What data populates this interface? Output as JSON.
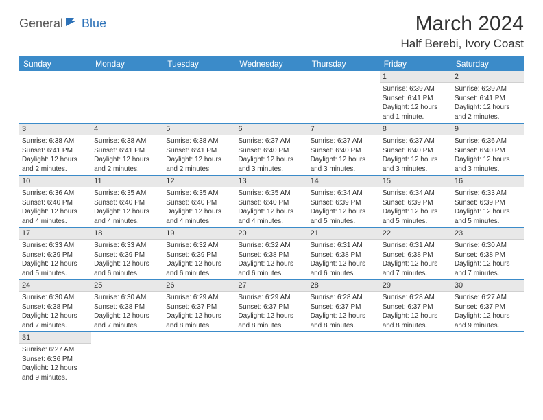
{
  "logo": {
    "general": "General",
    "blue": "Blue"
  },
  "header": {
    "title": "March 2024",
    "location": "Half Berebi, Ivory Coast"
  },
  "colors": {
    "header_bg": "#3b8bc9",
    "header_text": "#ffffff",
    "daynum_bg": "#e8e8e8",
    "border": "#3b8bc9",
    "logo_gray": "#5a5a5a",
    "logo_blue": "#2d72b8"
  },
  "weekdays": [
    "Sunday",
    "Monday",
    "Tuesday",
    "Wednesday",
    "Thursday",
    "Friday",
    "Saturday"
  ],
  "weeks": [
    [
      null,
      null,
      null,
      null,
      null,
      {
        "day": "1",
        "sunrise": "Sunrise: 6:39 AM",
        "sunset": "Sunset: 6:41 PM",
        "daylight": "Daylight: 12 hours and 1 minute."
      },
      {
        "day": "2",
        "sunrise": "Sunrise: 6:39 AM",
        "sunset": "Sunset: 6:41 PM",
        "daylight": "Daylight: 12 hours and 2 minutes."
      }
    ],
    [
      {
        "day": "3",
        "sunrise": "Sunrise: 6:38 AM",
        "sunset": "Sunset: 6:41 PM",
        "daylight": "Daylight: 12 hours and 2 minutes."
      },
      {
        "day": "4",
        "sunrise": "Sunrise: 6:38 AM",
        "sunset": "Sunset: 6:41 PM",
        "daylight": "Daylight: 12 hours and 2 minutes."
      },
      {
        "day": "5",
        "sunrise": "Sunrise: 6:38 AM",
        "sunset": "Sunset: 6:41 PM",
        "daylight": "Daylight: 12 hours and 2 minutes."
      },
      {
        "day": "6",
        "sunrise": "Sunrise: 6:37 AM",
        "sunset": "Sunset: 6:40 PM",
        "daylight": "Daylight: 12 hours and 3 minutes."
      },
      {
        "day": "7",
        "sunrise": "Sunrise: 6:37 AM",
        "sunset": "Sunset: 6:40 PM",
        "daylight": "Daylight: 12 hours and 3 minutes."
      },
      {
        "day": "8",
        "sunrise": "Sunrise: 6:37 AM",
        "sunset": "Sunset: 6:40 PM",
        "daylight": "Daylight: 12 hours and 3 minutes."
      },
      {
        "day": "9",
        "sunrise": "Sunrise: 6:36 AM",
        "sunset": "Sunset: 6:40 PM",
        "daylight": "Daylight: 12 hours and 3 minutes."
      }
    ],
    [
      {
        "day": "10",
        "sunrise": "Sunrise: 6:36 AM",
        "sunset": "Sunset: 6:40 PM",
        "daylight": "Daylight: 12 hours and 4 minutes."
      },
      {
        "day": "11",
        "sunrise": "Sunrise: 6:35 AM",
        "sunset": "Sunset: 6:40 PM",
        "daylight": "Daylight: 12 hours and 4 minutes."
      },
      {
        "day": "12",
        "sunrise": "Sunrise: 6:35 AM",
        "sunset": "Sunset: 6:40 PM",
        "daylight": "Daylight: 12 hours and 4 minutes."
      },
      {
        "day": "13",
        "sunrise": "Sunrise: 6:35 AM",
        "sunset": "Sunset: 6:40 PM",
        "daylight": "Daylight: 12 hours and 4 minutes."
      },
      {
        "day": "14",
        "sunrise": "Sunrise: 6:34 AM",
        "sunset": "Sunset: 6:39 PM",
        "daylight": "Daylight: 12 hours and 5 minutes."
      },
      {
        "day": "15",
        "sunrise": "Sunrise: 6:34 AM",
        "sunset": "Sunset: 6:39 PM",
        "daylight": "Daylight: 12 hours and 5 minutes."
      },
      {
        "day": "16",
        "sunrise": "Sunrise: 6:33 AM",
        "sunset": "Sunset: 6:39 PM",
        "daylight": "Daylight: 12 hours and 5 minutes."
      }
    ],
    [
      {
        "day": "17",
        "sunrise": "Sunrise: 6:33 AM",
        "sunset": "Sunset: 6:39 PM",
        "daylight": "Daylight: 12 hours and 5 minutes."
      },
      {
        "day": "18",
        "sunrise": "Sunrise: 6:33 AM",
        "sunset": "Sunset: 6:39 PM",
        "daylight": "Daylight: 12 hours and 6 minutes."
      },
      {
        "day": "19",
        "sunrise": "Sunrise: 6:32 AM",
        "sunset": "Sunset: 6:39 PM",
        "daylight": "Daylight: 12 hours and 6 minutes."
      },
      {
        "day": "20",
        "sunrise": "Sunrise: 6:32 AM",
        "sunset": "Sunset: 6:38 PM",
        "daylight": "Daylight: 12 hours and 6 minutes."
      },
      {
        "day": "21",
        "sunrise": "Sunrise: 6:31 AM",
        "sunset": "Sunset: 6:38 PM",
        "daylight": "Daylight: 12 hours and 6 minutes."
      },
      {
        "day": "22",
        "sunrise": "Sunrise: 6:31 AM",
        "sunset": "Sunset: 6:38 PM",
        "daylight": "Daylight: 12 hours and 7 minutes."
      },
      {
        "day": "23",
        "sunrise": "Sunrise: 6:30 AM",
        "sunset": "Sunset: 6:38 PM",
        "daylight": "Daylight: 12 hours and 7 minutes."
      }
    ],
    [
      {
        "day": "24",
        "sunrise": "Sunrise: 6:30 AM",
        "sunset": "Sunset: 6:38 PM",
        "daylight": "Daylight: 12 hours and 7 minutes."
      },
      {
        "day": "25",
        "sunrise": "Sunrise: 6:30 AM",
        "sunset": "Sunset: 6:38 PM",
        "daylight": "Daylight: 12 hours and 7 minutes."
      },
      {
        "day": "26",
        "sunrise": "Sunrise: 6:29 AM",
        "sunset": "Sunset: 6:37 PM",
        "daylight": "Daylight: 12 hours and 8 minutes."
      },
      {
        "day": "27",
        "sunrise": "Sunrise: 6:29 AM",
        "sunset": "Sunset: 6:37 PM",
        "daylight": "Daylight: 12 hours and 8 minutes."
      },
      {
        "day": "28",
        "sunrise": "Sunrise: 6:28 AM",
        "sunset": "Sunset: 6:37 PM",
        "daylight": "Daylight: 12 hours and 8 minutes."
      },
      {
        "day": "29",
        "sunrise": "Sunrise: 6:28 AM",
        "sunset": "Sunset: 6:37 PM",
        "daylight": "Daylight: 12 hours and 8 minutes."
      },
      {
        "day": "30",
        "sunrise": "Sunrise: 6:27 AM",
        "sunset": "Sunset: 6:37 PM",
        "daylight": "Daylight: 12 hours and 9 minutes."
      }
    ],
    [
      {
        "day": "31",
        "sunrise": "Sunrise: 6:27 AM",
        "sunset": "Sunset: 6:36 PM",
        "daylight": "Daylight: 12 hours and 9 minutes."
      },
      null,
      null,
      null,
      null,
      null,
      null
    ]
  ]
}
